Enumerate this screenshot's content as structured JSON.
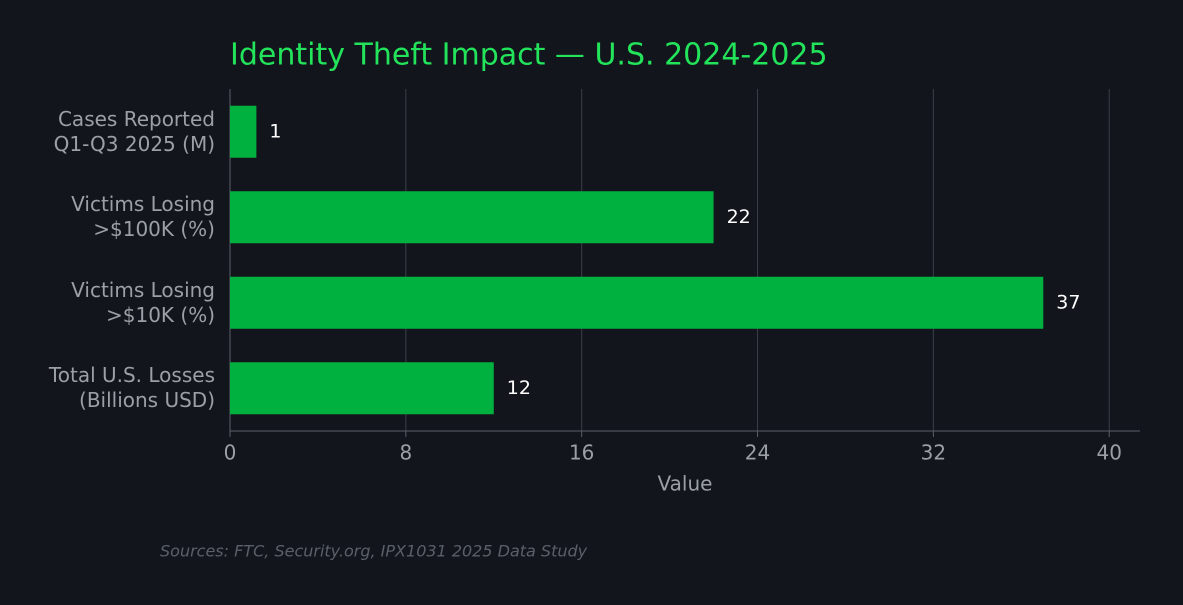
{
  "chart_data": {
    "type": "bar",
    "orientation": "horizontal",
    "title": "Identity Theft Impact — U.S. 2024-2025",
    "categories": [
      "Cases Reported\nQ1-Q3 2025 (M)",
      "Victims Losing\n>$100K (%)",
      "Victims Losing\n>$10K (%)",
      "Total U.S. Losses\n(Billions USD)"
    ],
    "values": [
      1.2,
      22,
      37,
      12
    ],
    "value_labels": [
      "1",
      "22",
      "37",
      "12"
    ],
    "color": "#00b140",
    "xlim": [
      0,
      41.4
    ],
    "xticks": [
      0,
      8,
      16,
      24,
      32,
      40
    ],
    "xlabel": "Value",
    "grid": true,
    "source": "Sources: FTC, Security.org, IPX1031 2025 Data Study"
  }
}
